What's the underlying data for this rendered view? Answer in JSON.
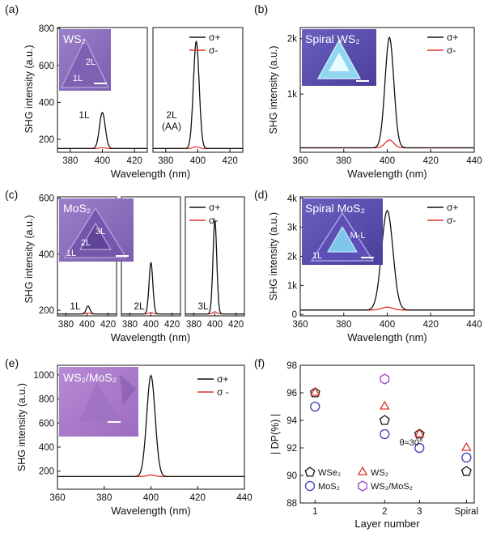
{
  "chart_data": [
    {
      "id": "a",
      "panel_label": "(a)",
      "type": "line",
      "ylabel": "SHG intensity (a.u.)",
      "xlabel": "Wavelength (nm)",
      "y_ticks": [
        "200",
        "400",
        "600",
        "800"
      ],
      "ylim": [
        130,
        805
      ],
      "inset_title": "WS₂",
      "inset_labels": [
        "2L",
        "1L"
      ],
      "legend": [
        "σ+",
        "σ-"
      ],
      "subpanels": [
        {
          "label": "1L",
          "x_ticks": [
            "380",
            "400",
            "420"
          ],
          "xlim": [
            372,
            428
          ],
          "center": 400,
          "peak_cp": 345,
          "peak_cm": 155,
          "base": 150,
          "width": 1.8
        },
        {
          "label": "2L\n(AA)",
          "x_ticks": [
            "380",
            "400",
            "420"
          ],
          "xlim": [
            372,
            428
          ],
          "center": 399,
          "peak_cp": 730,
          "peak_cm": 160,
          "base": 150,
          "width": 1.8
        }
      ]
    },
    {
      "id": "b",
      "panel_label": "(b)",
      "type": "line",
      "ylabel": "SHG intensity (a.u.)",
      "xlabel": "Wavelength (nm)",
      "x_ticks": [
        "360",
        "380",
        "400",
        "420",
        "440"
      ],
      "xlim": [
        360,
        440
      ],
      "y_ticks": [
        "1k",
        "2k"
      ],
      "y_tick_values": [
        1000,
        2000
      ],
      "ylim": [
        -50,
        2200
      ],
      "inset_title": "Spiral WS₂",
      "legend": [
        "σ+",
        "σ-"
      ],
      "series": [
        {
          "name": "σ+",
          "center": 401,
          "peak": 2020,
          "base": 30,
          "width": 2.0
        },
        {
          "name": "σ-",
          "center": 401,
          "peak": 170,
          "base": 30,
          "width": 2.0
        }
      ]
    },
    {
      "id": "c",
      "panel_label": "(c)",
      "type": "line",
      "ylabel": "SHG intensity (a.u.)",
      "xlabel": "Wavelength (nm)",
      "y_ticks": [
        "200",
        "400",
        "600"
      ],
      "ylim": [
        180,
        605
      ],
      "inset_title": "MoS₂",
      "inset_labels": [
        "3L",
        "2L",
        "1L"
      ],
      "legend": [
        "σ+",
        "σ-"
      ],
      "subpanels": [
        {
          "label": "1L",
          "x_ticks": [
            "380",
            "400",
            "420"
          ],
          "xlim": [
            372,
            428
          ],
          "center": 401,
          "peak_cp": 215,
          "peak_cm": 190,
          "base": 187,
          "width": 1.8
        },
        {
          "label": "2L",
          "x_ticks": [
            "380",
            "400",
            "420"
          ],
          "xlim": [
            372,
            428
          ],
          "center": 400,
          "peak_cp": 370,
          "peak_cm": 192,
          "base": 187,
          "width": 1.8
        },
        {
          "label": "3L",
          "x_ticks": [
            "380",
            "400",
            "420"
          ],
          "xlim": [
            372,
            428
          ],
          "center": 400,
          "peak_cp": 520,
          "peak_cm": 195,
          "base": 187,
          "width": 1.8
        }
      ]
    },
    {
      "id": "d",
      "panel_label": "(d)",
      "type": "line",
      "ylabel": "SHG intensity (a.u.)",
      "xlabel": "Wavelength (nm)",
      "x_ticks": [
        "360",
        "380",
        "400",
        "420",
        "440"
      ],
      "xlim": [
        360,
        440
      ],
      "y_ticks": [
        "0",
        "1k",
        "2k",
        "3k",
        "4k"
      ],
      "y_tick_values": [
        0,
        1000,
        2000,
        3000,
        4000
      ],
      "ylim": [
        -50,
        4050
      ],
      "inset_title": "Spiral MoS₂",
      "inset_labels": [
        "M-L",
        "1L"
      ],
      "legend": [
        "σ+",
        "σ-"
      ],
      "series": [
        {
          "name": "σ+",
          "center": 400,
          "peak": 3580,
          "base": 150,
          "width": 2.6
        },
        {
          "name": "σ-",
          "center": 400,
          "peak": 250,
          "base": 150,
          "width": 2.6
        }
      ]
    },
    {
      "id": "e",
      "panel_label": "(e)",
      "type": "line",
      "ylabel": "SHG intensity (a.u.)",
      "xlabel": "Wavelength (nm)",
      "x_ticks": [
        "360",
        "380",
        "400",
        "420",
        "440"
      ],
      "xlim": [
        360,
        440
      ],
      "y_ticks": [
        "200",
        "400",
        "600",
        "800",
        "1000"
      ],
      "y_tick_values": [
        200,
        400,
        600,
        800,
        1000
      ],
      "ylim": [
        50,
        1080
      ],
      "inset_title": "WS₂/MoS₂",
      "legend": [
        "σ+",
        "σ -"
      ],
      "series": [
        {
          "name": "σ+",
          "center": 400,
          "peak": 995,
          "base": 155,
          "width": 1.8
        },
        {
          "name": "σ -",
          "center": 400,
          "peak": 168,
          "base": 155,
          "width": 1.8
        }
      ]
    },
    {
      "id": "f",
      "panel_label": "(f)",
      "type": "scatter",
      "ylabel": "| DP(%) |",
      "xlabel": "Layer number",
      "categories": [
        "1",
        "2",
        "3",
        "Spiral"
      ],
      "y_ticks": [
        "88",
        "90",
        "92",
        "94",
        "96",
        "98"
      ],
      "y_tick_values": [
        88,
        90,
        92,
        94,
        96,
        98
      ],
      "ylim": [
        88,
        98
      ],
      "annotation": "θ≈30°",
      "legend_labels": [
        "WSe₂",
        "WS₂",
        "MoS₂",
        "WS₂/MoS₂"
      ],
      "series": [
        {
          "name": "WSe₂",
          "marker": "pentagon",
          "color": "#111111",
          "values": [
            96,
            94,
            93,
            90.3
          ]
        },
        {
          "name": "WS₂",
          "marker": "triangle",
          "color": "#e0332a",
          "values": [
            96,
            95,
            93,
            92
          ]
        },
        {
          "name": "MoS₂",
          "marker": "circle",
          "color": "#3c3fb5",
          "values": [
            95,
            93,
            92,
            91.3
          ]
        },
        {
          "name": "WS₂/MoS₂",
          "marker": "hexagon",
          "color": "#a43fc4",
          "values": [
            null,
            97,
            null,
            null
          ]
        }
      ]
    }
  ]
}
